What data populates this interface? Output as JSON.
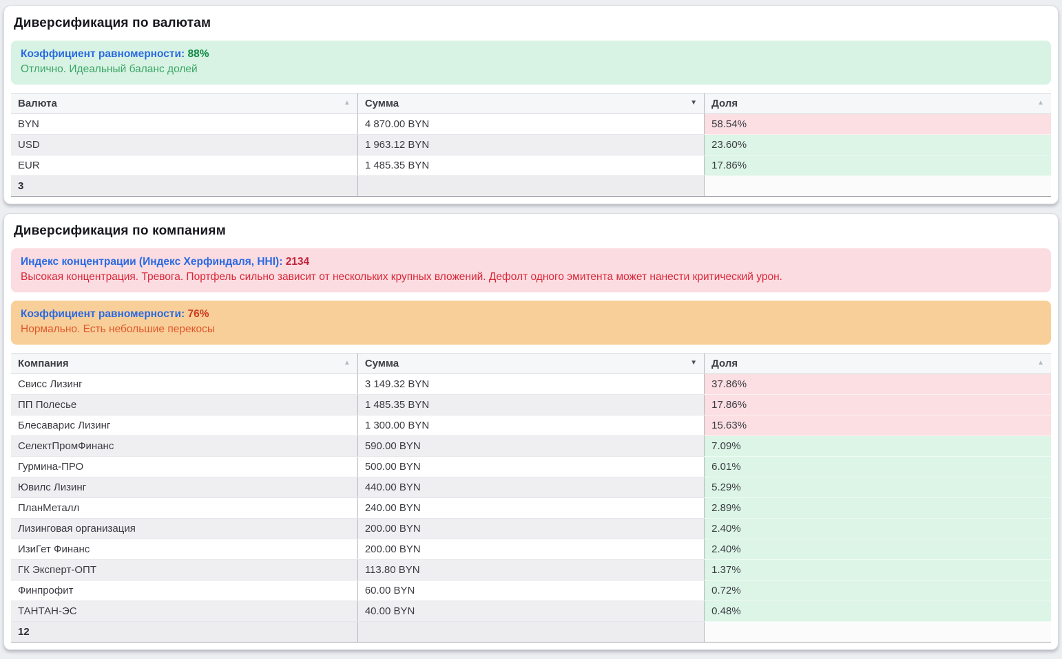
{
  "colors": {
    "accent_blue": "#2a6ae2",
    "success_green": "#0d8a42",
    "danger_red": "#d92637",
    "warning_orange": "#e0582c",
    "share_high_bg": "#fbdfe3",
    "share_ok_bg": "#dcf5e7"
  },
  "currency_card": {
    "title": "Диверсификация по валютам",
    "alert": {
      "label": "Коэффициент равномерности:",
      "value": "88%",
      "subtitle": "Отлично. Идеальный баланс долей"
    },
    "table": {
      "columns": [
        {
          "label": "Валюта",
          "sort_icon": "▲",
          "sort_state": "inactive"
        },
        {
          "label": "Сумма",
          "sort_icon": "▼",
          "sort_state": "active"
        },
        {
          "label": "Доля",
          "sort_icon": "▲",
          "sort_state": "inactive"
        }
      ],
      "rows": [
        {
          "name": "BYN",
          "amount": "4 870.00 BYN",
          "share": "58.54%",
          "share_state": "high"
        },
        {
          "name": "USD",
          "amount": "1 963.12 BYN",
          "share": "23.60%",
          "share_state": "ok"
        },
        {
          "name": "EUR",
          "amount": "1 485.35 BYN",
          "share": "17.86%",
          "share_state": "ok"
        }
      ],
      "footer_count": "3"
    }
  },
  "company_card": {
    "title": "Диверсификация по компаниям",
    "hhi_alert": {
      "label": "Индекс концентрации (Индекс Херфиндаля, HHI):",
      "value": "2134",
      "subtitle": "Высокая концентрация. Тревога. Портфель сильно зависит от нескольких крупных вложений. Дефолт одного эмитента может нанести критический урон."
    },
    "evenness_alert": {
      "label": "Коэффициент равномерности:",
      "value": "76%",
      "subtitle": "Нормально. Есть небольшие перекосы"
    },
    "table": {
      "columns": [
        {
          "label": "Компания",
          "sort_icon": "▲",
          "sort_state": "inactive"
        },
        {
          "label": "Сумма",
          "sort_icon": "▼",
          "sort_state": "active"
        },
        {
          "label": "Доля",
          "sort_icon": "▲",
          "sort_state": "inactive"
        }
      ],
      "rows": [
        {
          "name": "Свисс Лизинг",
          "amount": "3 149.32 BYN",
          "share": "37.86%",
          "share_state": "high"
        },
        {
          "name": "ПП Полесье",
          "amount": "1 485.35 BYN",
          "share": "17.86%",
          "share_state": "high"
        },
        {
          "name": "Блесаварис Лизинг",
          "amount": "1 300.00 BYN",
          "share": "15.63%",
          "share_state": "high"
        },
        {
          "name": "СелектПромФинанс",
          "amount": "590.00 BYN",
          "share": "7.09%",
          "share_state": "ok"
        },
        {
          "name": "Гурмина-ПРО",
          "amount": "500.00 BYN",
          "share": "6.01%",
          "share_state": "ok"
        },
        {
          "name": "Ювилс Лизинг",
          "amount": "440.00 BYN",
          "share": "5.29%",
          "share_state": "ok"
        },
        {
          "name": "ПланМеталл",
          "amount": "240.00 BYN",
          "share": "2.89%",
          "share_state": "ok"
        },
        {
          "name": "Лизинговая организация",
          "amount": "200.00 BYN",
          "share": "2.40%",
          "share_state": "ok"
        },
        {
          "name": "ИзиГет Финанс",
          "amount": "200.00 BYN",
          "share": "2.40%",
          "share_state": "ok"
        },
        {
          "name": "ГК Эксперт-ОПТ",
          "amount": "113.80 BYN",
          "share": "1.37%",
          "share_state": "ok"
        },
        {
          "name": "Финпрофит",
          "amount": "60.00 BYN",
          "share": "0.72%",
          "share_state": "ok"
        },
        {
          "name": "ТАНТАН-ЭС",
          "amount": "40.00 BYN",
          "share": "0.48%",
          "share_state": "ok"
        }
      ],
      "footer_count": "12"
    }
  }
}
